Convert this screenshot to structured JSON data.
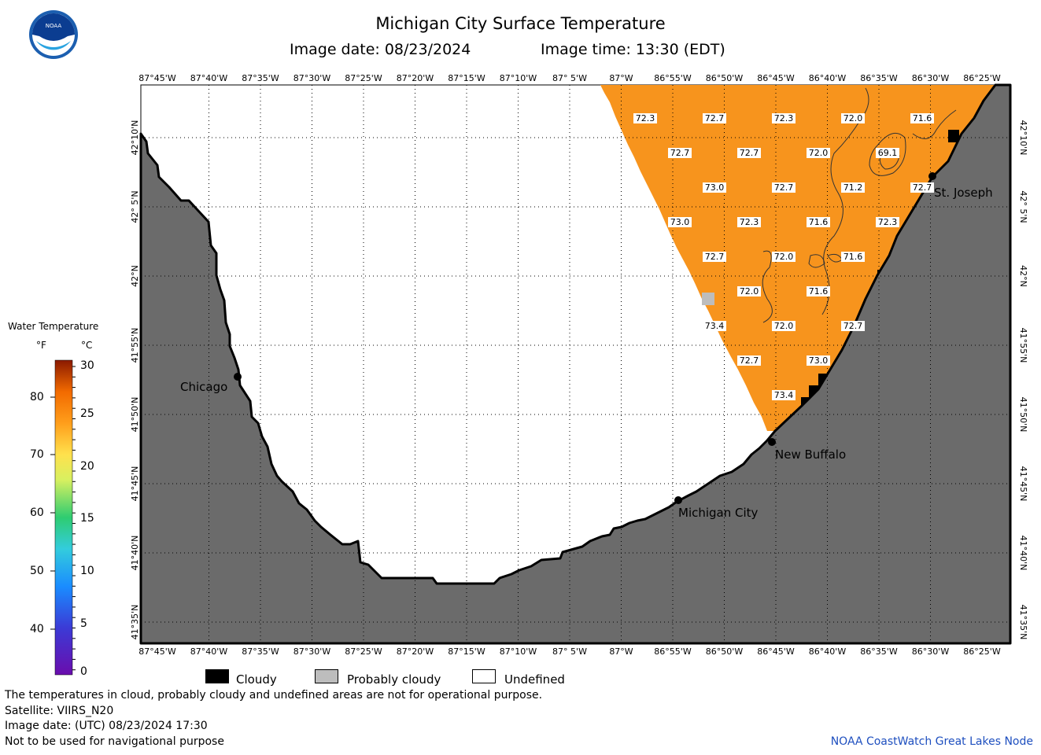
{
  "header": {
    "title": "Michigan City Surface Temperature",
    "image_date": "Image date: 08/23/2024",
    "image_time": "Image time: 13:30 (EDT)"
  },
  "logo": {
    "text": "NOAA",
    "icon": "noaa-logo-icon"
  },
  "map": {
    "lon_labels": [
      "87°45'W",
      "87°40'W",
      "87°35'W",
      "87°30'W",
      "87°25'W",
      "87°20'W",
      "87°15'W",
      "87°10'W",
      "87° 5'W",
      "87°W",
      "86°55'W",
      "86°50'W",
      "86°45'W",
      "86°40'W",
      "86°35'W",
      "86°30'W",
      "86°25'W"
    ],
    "lat_labels": [
      "42°10'N",
      "42° 5'N",
      "42°N",
      "41°55'N",
      "41°50'N",
      "41°45'N",
      "41°40'N",
      "41°35'N"
    ],
    "temperature_labels": [
      "72.3",
      "72.7",
      "72.3",
      "72.0",
      "71.6",
      "72.7",
      "72.7",
      "72.0",
      "69.1",
      "73.0",
      "72.7",
      "71.2",
      "72.7",
      "73.0",
      "72.3",
      "71.6",
      "72.3",
      "72.7",
      "72.0",
      "71.6",
      "72.0",
      "71.6",
      "73.4",
      "72.0",
      "72.7",
      "72.7",
      "73.0",
      "73.4"
    ],
    "cities": [
      "Chicago",
      "Michigan City",
      "New Buffalo",
      "St. Joseph"
    ],
    "colors": {
      "land": "#6b6b6b",
      "water_undefined": "#ffffff",
      "water_temp": "#f7941d",
      "cloudy": "#000000",
      "probably_cloudy": "#bdbdbd"
    }
  },
  "legend": {
    "title": "Water Temperature",
    "unit_f": "°F",
    "unit_c": "°C",
    "f_ticks": [
      "80",
      "70",
      "60",
      "50",
      "40"
    ],
    "c_ticks": [
      "30",
      "25",
      "20",
      "15",
      "10",
      "5",
      "0"
    ]
  },
  "key": {
    "cloudy": "Cloudy",
    "probably_cloudy": "Probably cloudy",
    "undefined": "Undefined"
  },
  "footer": {
    "note": "The temperatures in cloud, probably cloudy and undefined areas are not for operational purpose.",
    "satellite": "Satellite: VIIRS_N20",
    "utc_date": "Image date: (UTC) 08/23/2024  17:30",
    "nav_warning": "Not to be used for navigational purpose",
    "credit": "NOAA CoastWatch Great Lakes Node"
  }
}
